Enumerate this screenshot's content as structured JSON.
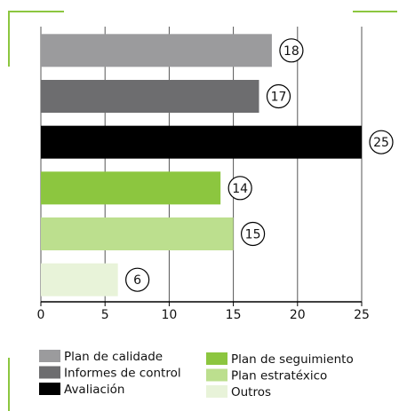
{
  "chart_data": {
    "type": "bar",
    "orientation": "horizontal",
    "categories": [
      "Plan de calidade",
      "Informes de control",
      "Avaliación",
      "Plan de seguimiento",
      "Plan estratéxico",
      "Outros"
    ],
    "values": [
      18,
      17,
      25,
      14,
      15,
      6
    ],
    "colors": [
      "#9b9b9d",
      "#6d6d6f",
      "#000000",
      "#8cc63f",
      "#bcdf8e",
      "#e8f3d9"
    ],
    "xlim": [
      0,
      25
    ],
    "xticks": [
      0,
      5,
      10,
      15,
      20,
      25
    ],
    "grid": true
  }
}
